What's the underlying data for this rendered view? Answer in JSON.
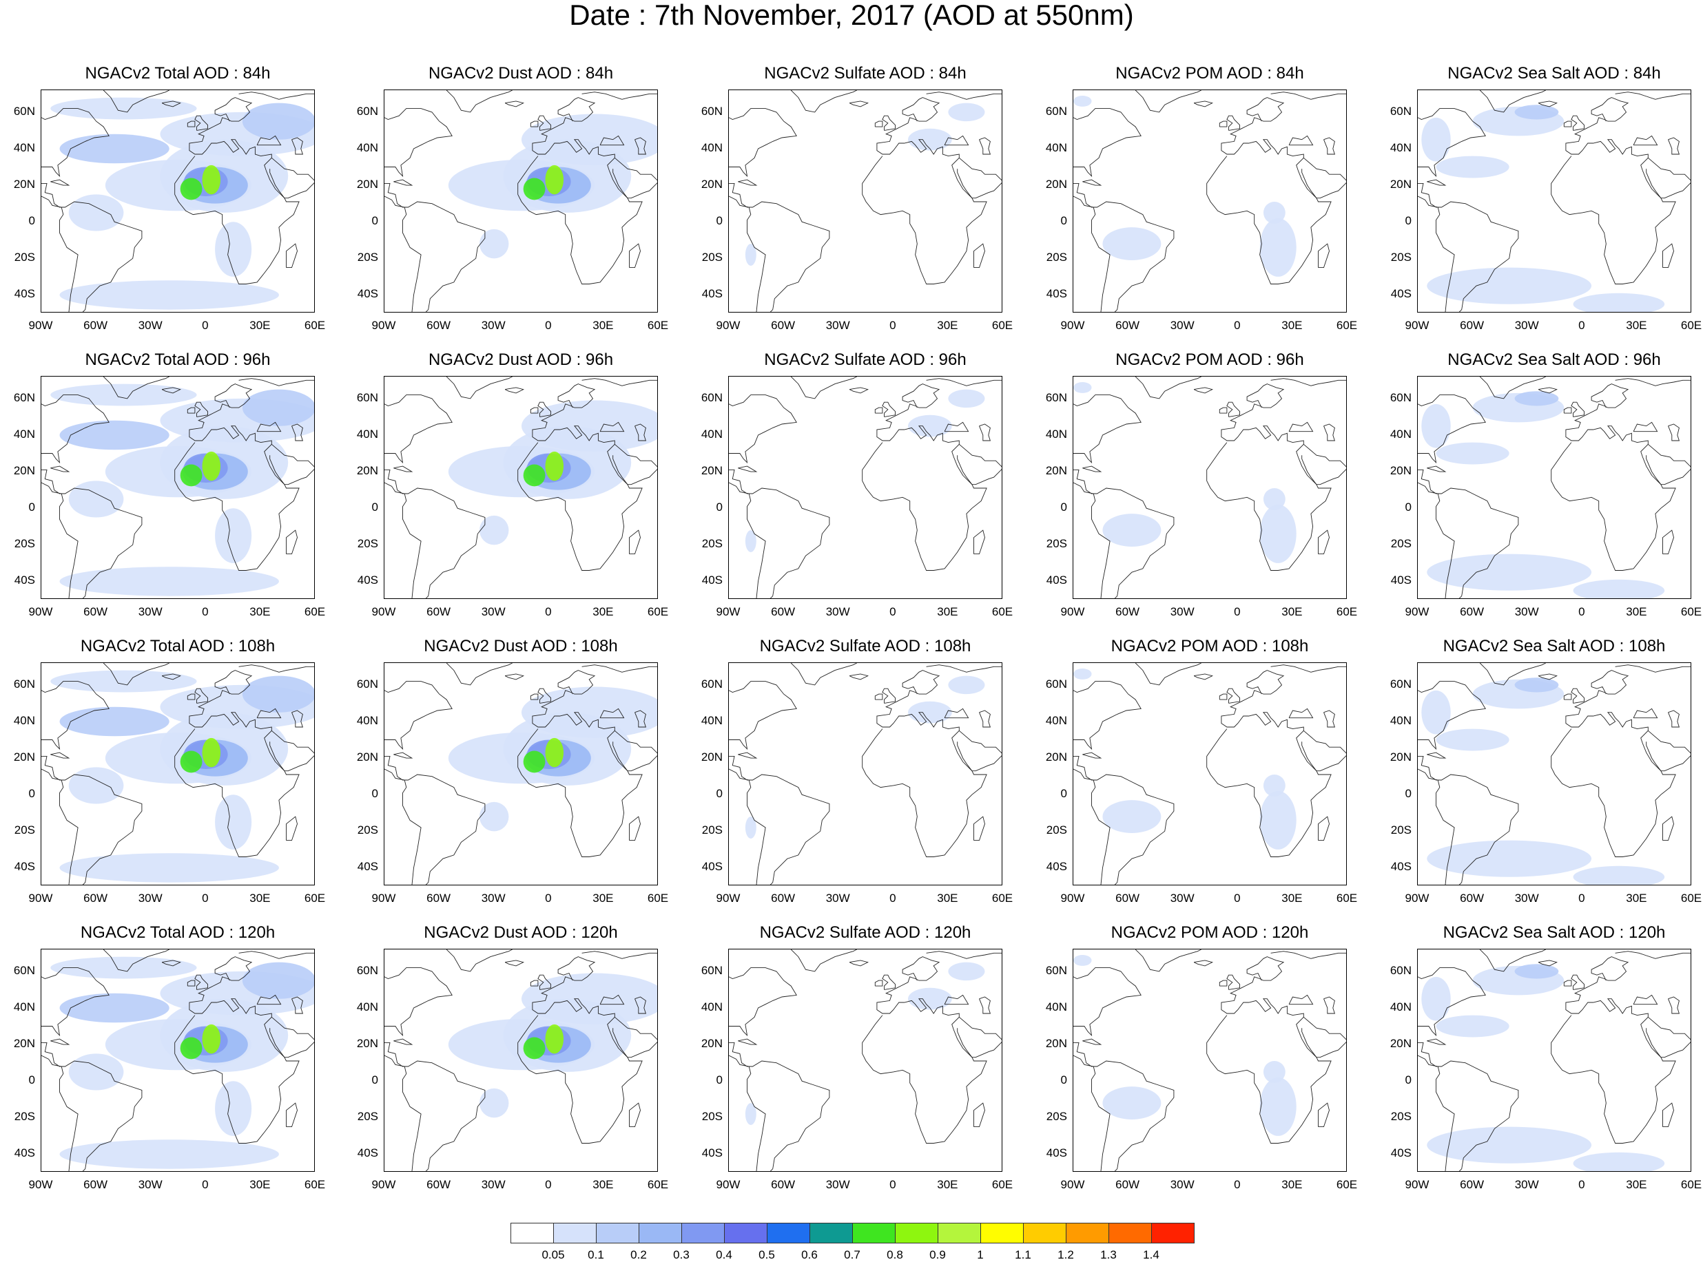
{
  "title": "Date : 7th November, 2017 (AOD at 550nm)",
  "lon_ticks": [
    "90W",
    "60W",
    "30W",
    "0",
    "30E",
    "60E"
  ],
  "lat_ticks": [
    "60N",
    "40N",
    "20N",
    "0",
    "20S",
    "40S"
  ],
  "panels": [
    [
      "NGACv2 Total AOD : 84h",
      "NGACv2 Dust AOD : 84h",
      "NGACv2 Sulfate AOD : 84h",
      "NGACv2 POM AOD : 84h",
      "NGACv2 Sea Salt AOD : 84h"
    ],
    [
      "NGACv2 Total AOD : 96h",
      "NGACv2 Dust AOD : 96h",
      "NGACv2 Sulfate AOD : 96h",
      "NGACv2 POM AOD : 96h",
      "NGACv2 Sea Salt AOD : 96h"
    ],
    [
      "NGACv2 Total AOD : 108h",
      "NGACv2 Dust AOD : 108h",
      "NGACv2 Sulfate AOD : 108h",
      "NGACv2 POM AOD : 108h",
      "NGACv2 Sea Salt AOD : 108h"
    ],
    [
      "NGACv2 Total AOD : 120h",
      "NGACv2 Dust AOD : 120h",
      "NGACv2 Sulfate AOD : 120h",
      "NGACv2 POM AOD : 120h",
      "NGACv2 Sea Salt  AOD : 120h"
    ]
  ],
  "colorbar": {
    "labels": [
      "0.05",
      "0.1",
      "0.2",
      "0.3",
      "0.4",
      "0.5",
      "0.6",
      "0.7",
      "0.8",
      "0.9",
      "1",
      "1.1",
      "1.2",
      "1.3",
      "1.4"
    ],
    "colors": [
      "#ffffff",
      "#d6e2fb",
      "#b8cdf8",
      "#9ab8f5",
      "#8099f2",
      "#6670ee",
      "#1f6ff0",
      "#0e9a92",
      "#3fe520",
      "#8ef60f",
      "#b4f53c",
      "#fffd00",
      "#ffcc00",
      "#ff9b00",
      "#ff6a00",
      "#ff2200"
    ]
  }
}
